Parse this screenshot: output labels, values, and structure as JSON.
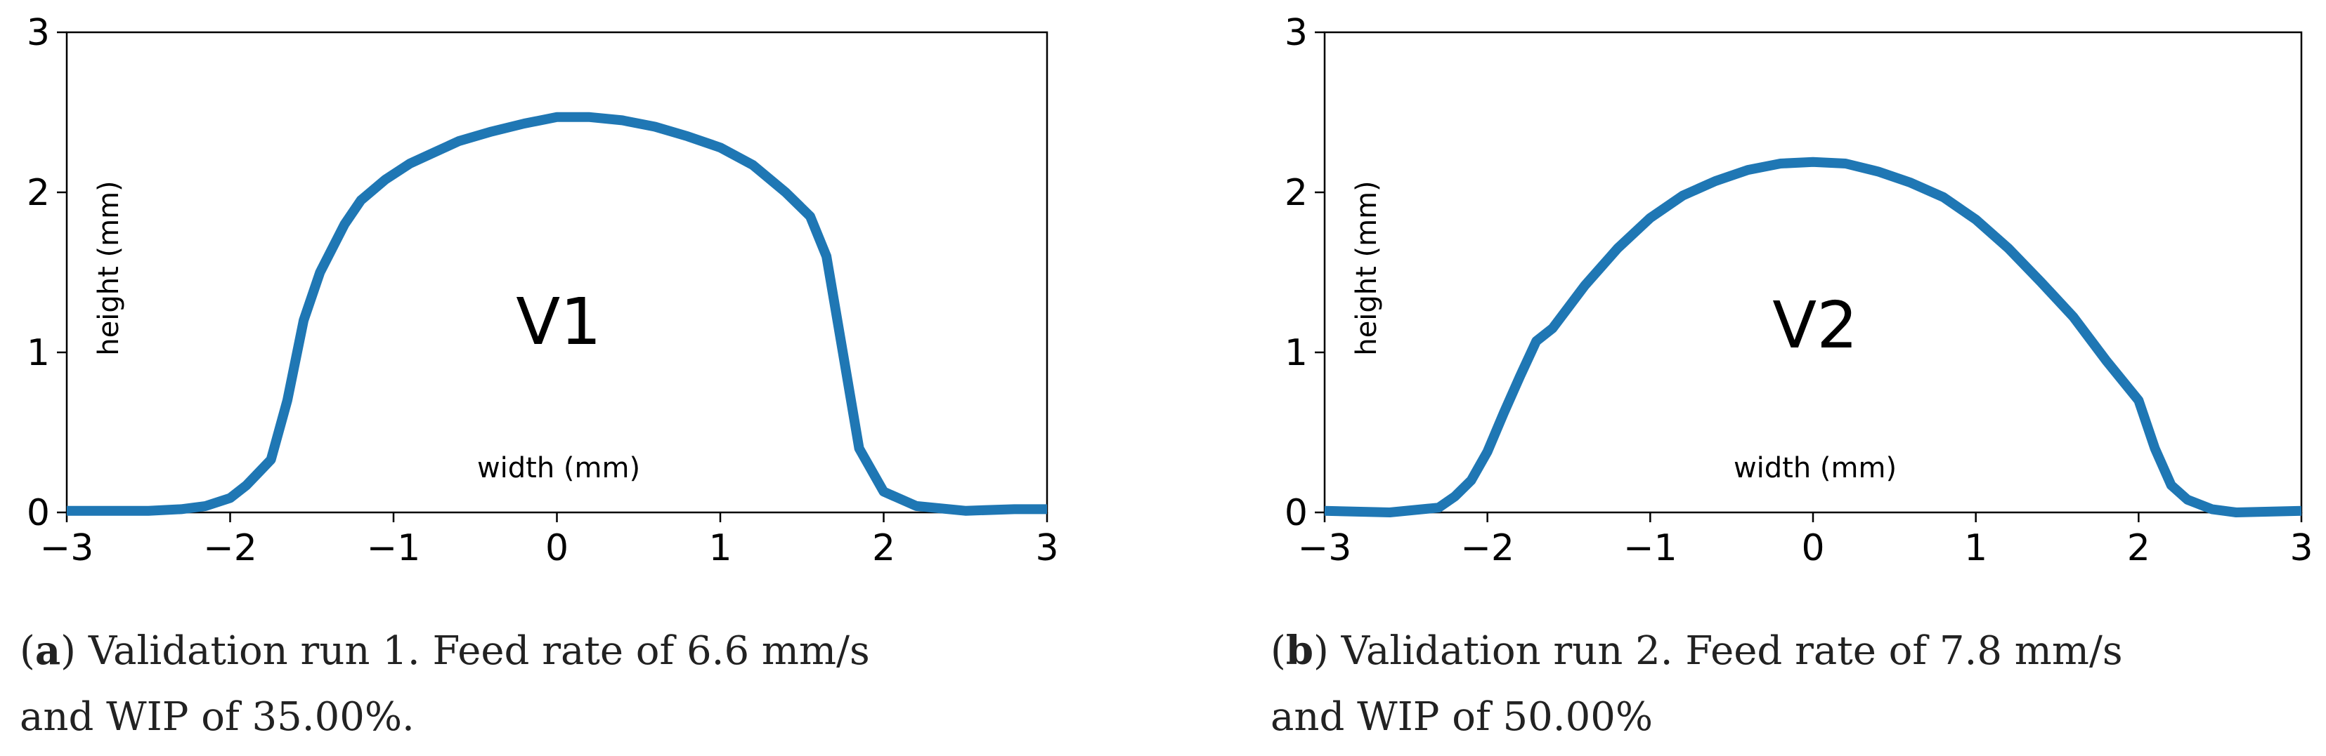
{
  "chart_data": [
    {
      "type": "line",
      "panel": "a",
      "title": "",
      "annotation": "V1",
      "xlabel": "width (mm)",
      "ylabel": "height (mm)",
      "xlim": [
        -3,
        3
      ],
      "ylim": [
        0,
        3
      ],
      "xticks": [
        "−3",
        "−2",
        "−1",
        "0",
        "1",
        "2",
        "3"
      ],
      "yticks": [
        "0",
        "1",
        "2",
        "3"
      ],
      "grid": false,
      "color": "#1f77b4",
      "series": [
        {
          "name": "V1 profile",
          "x": [
            -3.0,
            -2.5,
            -2.3,
            -2.15,
            -2.0,
            -1.9,
            -1.75,
            -1.65,
            -1.55,
            -1.45,
            -1.3,
            -1.2,
            -1.05,
            -0.9,
            -0.75,
            -0.6,
            -0.4,
            -0.2,
            0.0,
            0.2,
            0.4,
            0.6,
            0.8,
            1.0,
            1.2,
            1.4,
            1.55,
            1.65,
            1.75,
            1.85,
            2.0,
            2.2,
            2.5,
            2.8,
            3.0
          ],
          "y": [
            0.01,
            0.01,
            0.02,
            0.04,
            0.09,
            0.17,
            0.33,
            0.7,
            1.2,
            1.5,
            1.8,
            1.95,
            2.08,
            2.18,
            2.25,
            2.32,
            2.38,
            2.43,
            2.47,
            2.47,
            2.45,
            2.41,
            2.35,
            2.28,
            2.17,
            2.0,
            1.85,
            1.6,
            1.0,
            0.4,
            0.13,
            0.04,
            0.01,
            0.02,
            0.02
          ]
        }
      ]
    },
    {
      "type": "line",
      "panel": "b",
      "title": "",
      "annotation": "V2",
      "xlabel": "width (mm)",
      "ylabel": "height (mm)",
      "xlim": [
        -3,
        3
      ],
      "ylim": [
        0,
        3
      ],
      "xticks": [
        "−3",
        "−2",
        "−1",
        "0",
        "1",
        "2",
        "3"
      ],
      "yticks": [
        "0",
        "1",
        "2",
        "3"
      ],
      "grid": false,
      "color": "#1f77b4",
      "series": [
        {
          "name": "V2 profile",
          "x": [
            -3.0,
            -2.6,
            -2.3,
            -2.2,
            -2.1,
            -2.0,
            -1.9,
            -1.8,
            -1.7,
            -1.6,
            -1.4,
            -1.2,
            -1.0,
            -0.8,
            -0.6,
            -0.4,
            -0.2,
            0.0,
            0.2,
            0.4,
            0.6,
            0.8,
            1.0,
            1.2,
            1.4,
            1.6,
            1.8,
            2.0,
            2.1,
            2.2,
            2.3,
            2.45,
            2.6,
            3.0
          ],
          "y": [
            0.01,
            0.0,
            0.03,
            0.1,
            0.2,
            0.38,
            0.62,
            0.85,
            1.07,
            1.15,
            1.42,
            1.65,
            1.84,
            1.98,
            2.07,
            2.14,
            2.18,
            2.19,
            2.18,
            2.13,
            2.06,
            1.97,
            1.83,
            1.65,
            1.44,
            1.22,
            0.95,
            0.7,
            0.4,
            0.17,
            0.08,
            0.02,
            0.0,
            0.01
          ]
        }
      ]
    }
  ],
  "captions": {
    "a": {
      "tag": "a",
      "line1": "Validation run 1.  Feed rate of 6.6 mm/s",
      "line2": "and WIP of 35.00%."
    },
    "b": {
      "tag": "b",
      "line1": "Validation run 2.  Feed rate of 7.8 mm/s",
      "line2": "and WIP of 50.00%"
    }
  }
}
